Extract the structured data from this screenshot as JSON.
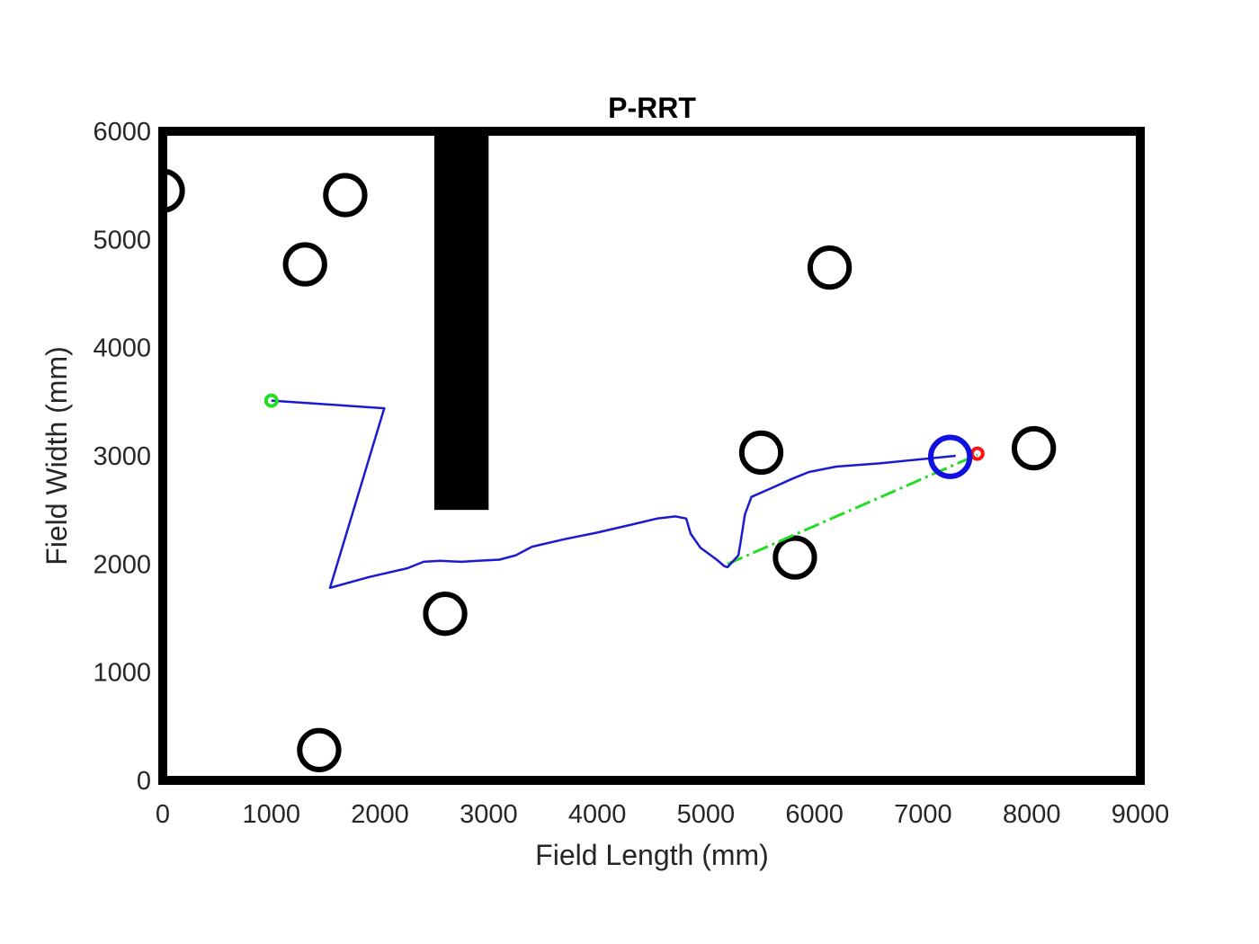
{
  "chart_data": {
    "type": "scatter",
    "title": "P-RRT",
    "xlabel": "Field Length (mm)",
    "ylabel": "Field Width (mm)",
    "xlim": [
      0,
      9000
    ],
    "ylim": [
      0,
      6000
    ],
    "xticks": [
      "0",
      "1000",
      "2000",
      "3000",
      "4000",
      "5000",
      "6000",
      "7000",
      "8000",
      "9000"
    ],
    "yticks": [
      "0",
      "1000",
      "2000",
      "3000",
      "4000",
      "5000",
      "6000"
    ],
    "grid": false,
    "field_border_color": "#000000",
    "wall": {
      "x_min": 2500,
      "x_max": 3000,
      "y_min": 2500,
      "y_max": 6000,
      "color": "#000000"
    },
    "obstacles": {
      "radius": 200,
      "color": "#000000",
      "centers": [
        {
          "x": 0,
          "y": 5450
        },
        {
          "x": 1680,
          "y": 5410
        },
        {
          "x": 1310,
          "y": 4770
        },
        {
          "x": 6140,
          "y": 4740
        },
        {
          "x": 5510,
          "y": 3030
        },
        {
          "x": 8020,
          "y": 3070
        },
        {
          "x": 5820,
          "y": 2060
        },
        {
          "x": 2600,
          "y": 1540
        },
        {
          "x": 1440,
          "y": 280
        }
      ]
    },
    "robot": {
      "x": 7250,
      "y": 2990,
      "radius": 200,
      "color": "#1010e0"
    },
    "start": {
      "x": 1000,
      "y": 3510,
      "color": "#22dd22"
    },
    "goal": {
      "x": 7500,
      "y": 3020,
      "color": "#ff1010"
    },
    "path": {
      "color": "#1a1ad0",
      "points": [
        [
          1000,
          3510
        ],
        [
          2040,
          3440
        ],
        [
          2030,
          3410
        ],
        [
          1540,
          1780
        ],
        [
          1900,
          1880
        ],
        [
          2250,
          1960
        ],
        [
          2400,
          2020
        ],
        [
          2550,
          2030
        ],
        [
          2750,
          2020
        ],
        [
          2900,
          2030
        ],
        [
          3100,
          2040
        ],
        [
          3250,
          2080
        ],
        [
          3400,
          2160
        ],
        [
          3700,
          2230
        ],
        [
          4000,
          2290
        ],
        [
          4300,
          2360
        ],
        [
          4550,
          2420
        ],
        [
          4720,
          2440
        ],
        [
          4820,
          2420
        ],
        [
          4860,
          2280
        ],
        [
          4950,
          2150
        ],
        [
          5100,
          2040
        ],
        [
          5170,
          1980
        ],
        [
          5200,
          1970
        ],
        [
          5300,
          2080
        ],
        [
          5320,
          2200
        ],
        [
          5360,
          2460
        ],
        [
          5420,
          2620
        ],
        [
          5600,
          2700
        ],
        [
          5800,
          2790
        ],
        [
          5950,
          2850
        ],
        [
          6200,
          2900
        ],
        [
          6600,
          2930
        ],
        [
          7000,
          2970
        ],
        [
          7300,
          3000
        ]
      ]
    },
    "direct_line": {
      "color": "#22dd22",
      "points": [
        [
          5200,
          2000
        ],
        [
          7500,
          3010
        ]
      ]
    }
  }
}
